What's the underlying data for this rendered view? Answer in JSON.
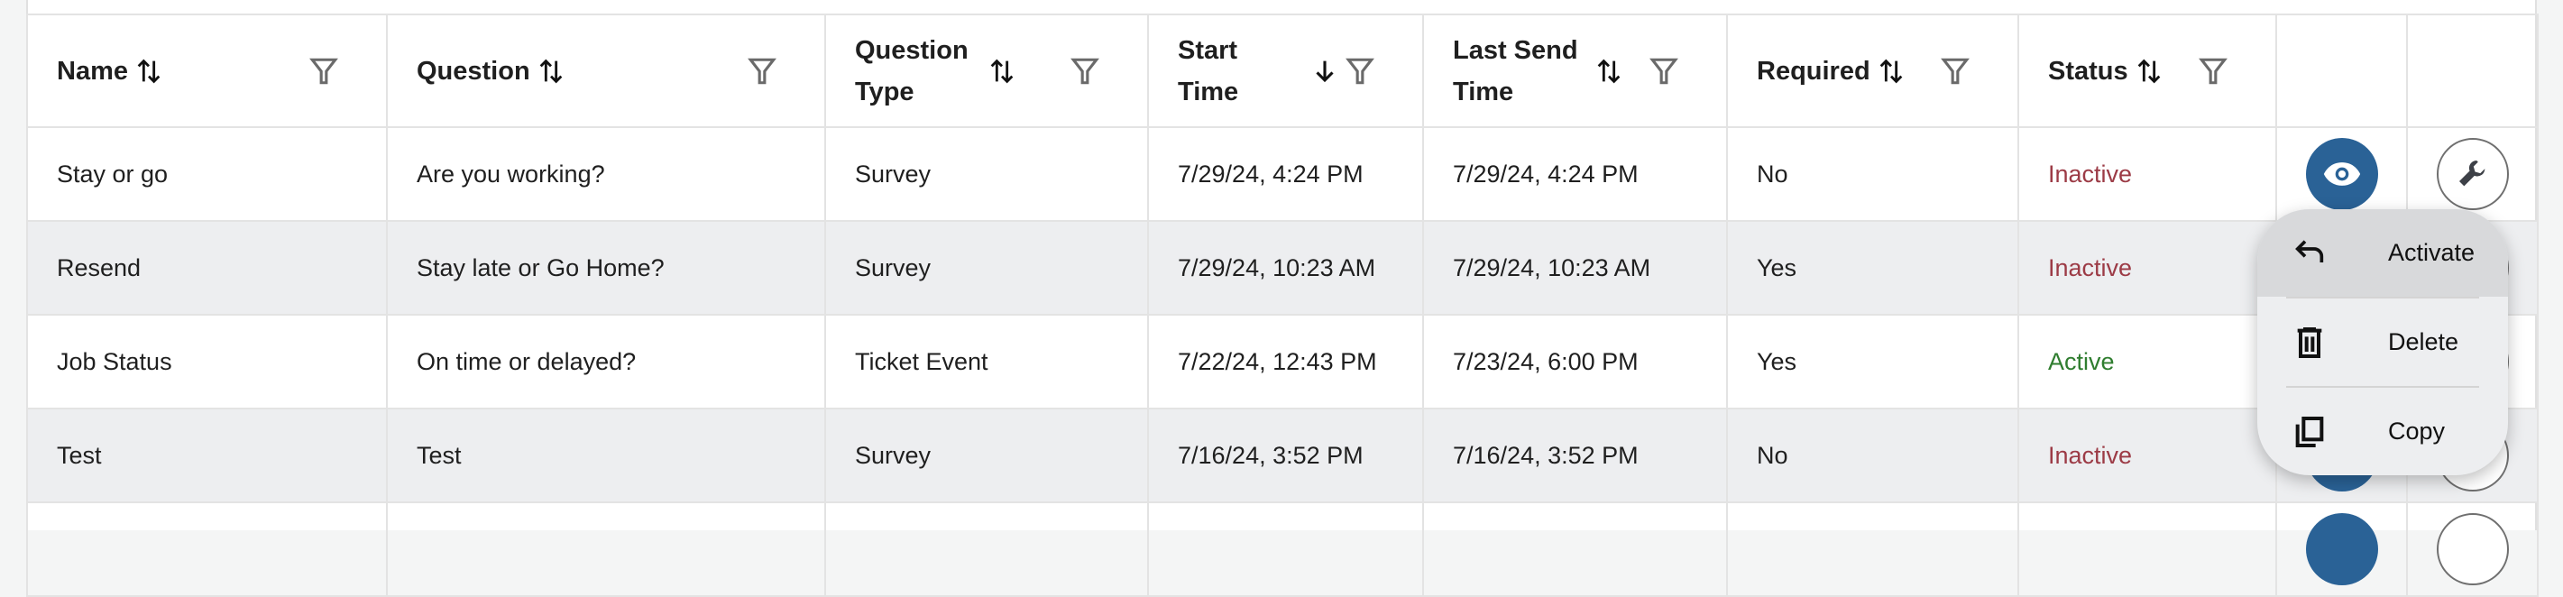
{
  "table": {
    "columns": [
      {
        "label": "Name",
        "sort": "unsorted"
      },
      {
        "label": "Question",
        "sort": "unsorted"
      },
      {
        "label": "Question Type",
        "sort": "unsorted"
      },
      {
        "label": "Start Time",
        "sort": "descending"
      },
      {
        "label": "Last Send Time",
        "sort": "unsorted"
      },
      {
        "label": "Required",
        "sort": "unsorted"
      },
      {
        "label": "Status",
        "sort": "unsorted"
      }
    ],
    "rows": [
      {
        "name": "Stay or go",
        "question": "Are you working?",
        "type": "Survey",
        "start": "7/29/24, 4:24 PM",
        "last": "7/29/24, 4:24 PM",
        "required": "No",
        "status": "Inactive"
      },
      {
        "name": "Resend",
        "question": "Stay late or Go Home?",
        "type": "Survey",
        "start": "7/29/24, 10:23 AM",
        "last": "7/29/24, 10:23 AM",
        "required": "Yes",
        "status": "Inactive"
      },
      {
        "name": "Job Status",
        "question": "On time or delayed?",
        "type": "Ticket Event",
        "start": "7/22/24, 12:43 PM",
        "last": "7/23/24, 6:00 PM",
        "required": "Yes",
        "status": "Active"
      },
      {
        "name": "Test",
        "question": "Test",
        "type": "Survey",
        "start": "7/16/24, 3:52 PM",
        "last": "7/16/24, 3:52 PM",
        "required": "No",
        "status": "Inactive"
      }
    ]
  },
  "menu": {
    "items": [
      {
        "label": "Activate",
        "icon": "undo-arrow-icon"
      },
      {
        "label": "Delete",
        "icon": "trash-icon"
      },
      {
        "label": "Copy",
        "icon": "copy-icon"
      }
    ]
  },
  "colors": {
    "inactive": "#9c3b46",
    "active": "#2f7d2f",
    "view_button": "#2a6296",
    "alt_row": "#edeef0"
  }
}
